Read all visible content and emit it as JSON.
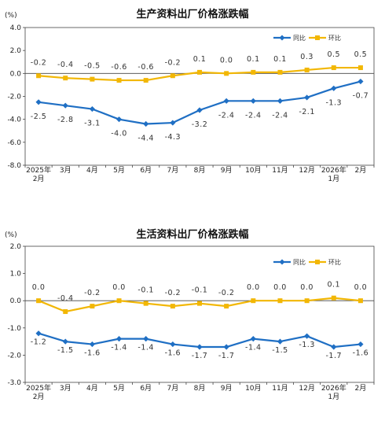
{
  "colors": {
    "yoy": "#1f6fc4",
    "mom": "#f2b705",
    "axis": "#444444"
  },
  "chart_data": [
    {
      "type": "line",
      "title": "生产资料出厂价格涨跌幅",
      "unit": "(%)",
      "ylim": [
        -8.0,
        4.0
      ],
      "yticks": [
        "4.0",
        "2.0",
        "0.0",
        "-2.0",
        "-4.0",
        "-6.0",
        "-8.0"
      ],
      "ytick_values": [
        4,
        2,
        0,
        -2,
        -4,
        -6,
        -8
      ],
      "categories": [
        "2025年2月",
        "3月",
        "4月",
        "5月",
        "6月",
        "7月",
        "8月",
        "9月",
        "10月",
        "11月",
        "12月",
        "2026年1月",
        "2月"
      ],
      "category_lines": [
        [
          "2025年",
          "2月"
        ],
        [
          "3月"
        ],
        [
          "4月"
        ],
        [
          "5月"
        ],
        [
          "6月"
        ],
        [
          "7月"
        ],
        [
          "8月"
        ],
        [
          "9月"
        ],
        [
          "10月"
        ],
        [
          "11月"
        ],
        [
          "12月"
        ],
        [
          "2026年",
          "1月"
        ],
        [
          "2月"
        ]
      ],
      "legend_position": "top-right",
      "series": [
        {
          "name": "同比",
          "key": "yoy",
          "values": [
            -2.5,
            -2.8,
            -3.1,
            -4.0,
            -4.4,
            -4.3,
            -3.2,
            -2.4,
            -2.4,
            -2.4,
            -2.1,
            -1.3,
            -0.7
          ],
          "labels": [
            "-2.5",
            "-2.8",
            "-3.1",
            "-4.0",
            "-4.4",
            "-4.3",
            "-3.2",
            "-2.4",
            "-2.4",
            "-2.4",
            "-2.1",
            "-1.3",
            "-0.7"
          ]
        },
        {
          "name": "环比",
          "key": "mom",
          "values": [
            -0.2,
            -0.4,
            -0.5,
            -0.6,
            -0.6,
            -0.2,
            0.1,
            0.0,
            0.1,
            0.1,
            0.3,
            0.5,
            0.5
          ],
          "labels": [
            "-0.2",
            "-0.4",
            "-0.5",
            "-0.6",
            "-0.6",
            "-0.2",
            "0.1",
            "0.0",
            "0.1",
            "0.1",
            "0.3",
            "0.5",
            "0.5"
          ]
        }
      ]
    },
    {
      "type": "line",
      "title": "生活资料出厂价格涨跌幅",
      "unit": "(%)",
      "ylim": [
        -3.0,
        2.0
      ],
      "yticks": [
        "2.0",
        "1.0",
        "0.0",
        "-1.0",
        "-2.0",
        "-3.0"
      ],
      "ytick_values": [
        2,
        1,
        0,
        -1,
        -2,
        -3
      ],
      "categories": [
        "2025年2月",
        "3月",
        "4月",
        "5月",
        "6月",
        "7月",
        "8月",
        "9月",
        "10月",
        "11月",
        "12月",
        "2026年1月",
        "2月"
      ],
      "category_lines": [
        [
          "2025年",
          "2月"
        ],
        [
          "3月"
        ],
        [
          "4月"
        ],
        [
          "5月"
        ],
        [
          "6月"
        ],
        [
          "7月"
        ],
        [
          "8月"
        ],
        [
          "9月"
        ],
        [
          "10月"
        ],
        [
          "11月"
        ],
        [
          "12月"
        ],
        [
          "2026年",
          "1月"
        ],
        [
          "2月"
        ]
      ],
      "legend_position": "top-right",
      "series": [
        {
          "name": "同比",
          "key": "yoy",
          "values": [
            -1.2,
            -1.5,
            -1.6,
            -1.4,
            -1.4,
            -1.6,
            -1.7,
            -1.7,
            -1.4,
            -1.5,
            -1.3,
            -1.7,
            -1.6
          ],
          "labels": [
            "-1.2",
            "-1.5",
            "-1.6",
            "-1.4",
            "-1.4",
            "-1.6",
            "-1.7",
            "-1.7",
            "-1.4",
            "-1.5",
            "-1.3",
            "-1.7",
            "-1.6"
          ]
        },
        {
          "name": "环比",
          "key": "mom",
          "values": [
            0.0,
            -0.4,
            -0.2,
            0.0,
            -0.1,
            -0.2,
            -0.1,
            -0.2,
            0.0,
            0.0,
            0.0,
            0.1,
            0.0
          ],
          "labels": [
            "0.0",
            "-0.4",
            "-0.2",
            "0.0",
            "-0.1",
            "-0.2",
            "-0.1",
            "-0.2",
            "0.0",
            "0.0",
            "0.0",
            "0.1",
            "0.0"
          ]
        }
      ]
    }
  ]
}
